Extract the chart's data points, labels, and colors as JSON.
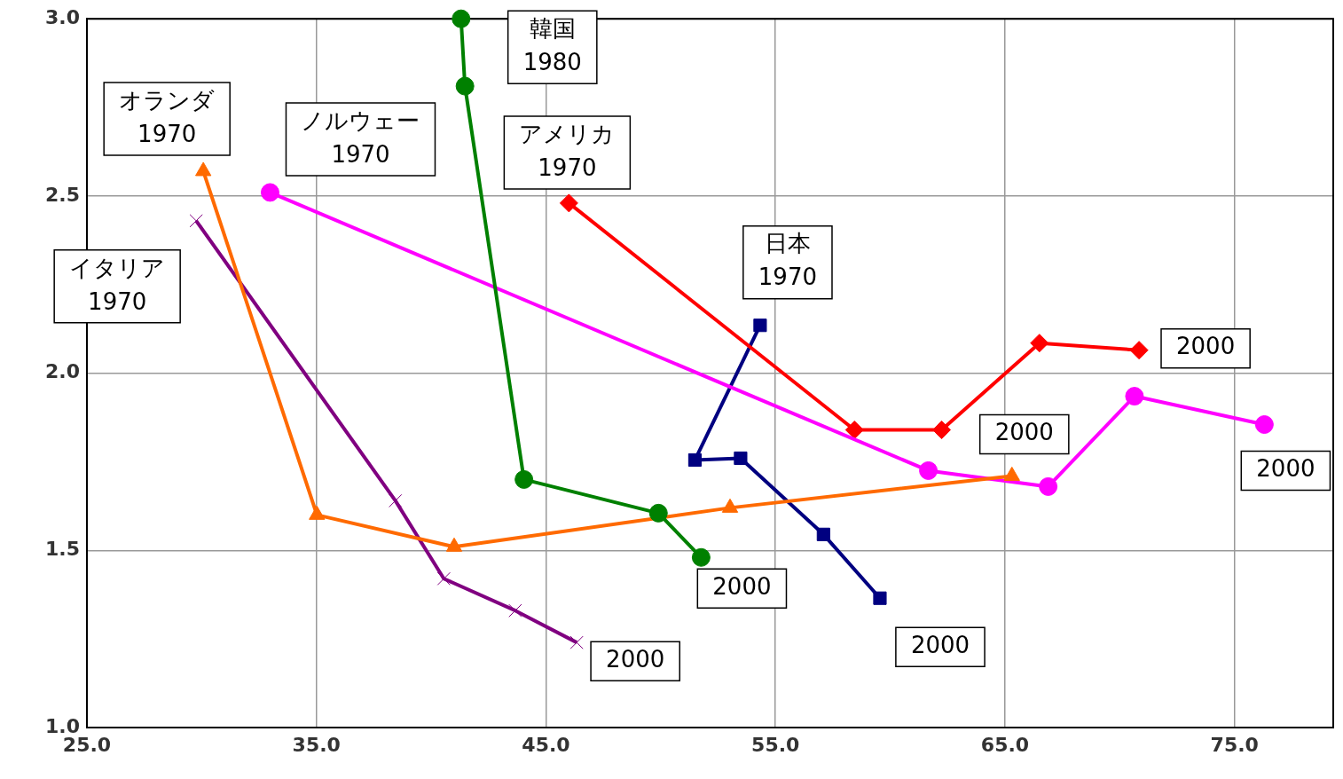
{
  "chart_data": {
    "type": "line",
    "xlim": [
      25,
      79.3
    ],
    "ylim": [
      1,
      3
    ],
    "xticks": [
      {
        "value": 25,
        "label": "25.0"
      },
      {
        "value": 35,
        "label": "35.0"
      },
      {
        "value": 45,
        "label": "45.0"
      },
      {
        "value": 55,
        "label": "55.0"
      },
      {
        "value": 65,
        "label": "65.0"
      },
      {
        "value": 75,
        "label": "75.0"
      }
    ],
    "yticks": [
      {
        "value": 1,
        "label": "1.0"
      },
      {
        "value": 1.5,
        "label": "1.5"
      },
      {
        "value": 2,
        "label": "2.0"
      },
      {
        "value": 2.5,
        "label": "2.5"
      },
      {
        "value": 3,
        "label": "3.0"
      }
    ],
    "grid": true,
    "legend": false,
    "line_style": "solid",
    "series": [
      {
        "color": "#008000",
        "marker": "circle",
        "x": [
          41.3,
          41.47,
          44.04,
          49.9,
          51.76
        ],
        "values": [
          3.0,
          2.81,
          1.7,
          1.605,
          1.48
        ]
      },
      {
        "color": "#ff6a00",
        "marker": "triangle",
        "x": [
          30.07,
          35.02,
          41.0,
          53.02,
          65.3
        ],
        "values": [
          2.57,
          1.6,
          1.51,
          1.62,
          1.71
        ]
      },
      {
        "color": "#ff00ff",
        "marker": "circle",
        "x": [
          32.98,
          61.66,
          66.88,
          70.64,
          76.3
        ],
        "values": [
          2.51,
          1.725,
          1.68,
          1.935,
          1.855
        ]
      },
      {
        "color": "#ff0000",
        "marker": "diamond",
        "x": [
          46.0,
          58.44,
          62.24,
          66.5,
          70.84
        ],
        "values": [
          2.48,
          1.84,
          1.84,
          2.085,
          2.065
        ]
      },
      {
        "color": "#000080",
        "marker": "square",
        "x": [
          54.33,
          51.49,
          53.48,
          57.09,
          59.55
        ],
        "values": [
          2.135,
          1.755,
          1.76,
          1.545,
          1.365
        ]
      },
      {
        "color": "#800080",
        "marker": "cross",
        "x": [
          29.76,
          38.44,
          40.55,
          43.66,
          46.34
        ],
        "values": [
          2.43,
          1.64,
          1.42,
          1.33,
          1.24
        ]
      }
    ],
    "annotations": [
      {
        "text": "韓国\n1980",
        "x": 41.3,
        "y": 3.0
      },
      {
        "text": "オランダ\n1970",
        "x": 30.07,
        "y": 2.57
      },
      {
        "text": "ノルウェー\n1970",
        "x": 32.98,
        "y": 2.51
      },
      {
        "text": "アメリカ\n1970",
        "x": 46.0,
        "y": 2.48
      },
      {
        "text": "日本\n1970",
        "x": 54.33,
        "y": 2.135
      },
      {
        "text": "イタリア\n1970",
        "x": 29.76,
        "y": 2.43
      },
      {
        "text": "2000",
        "x": 70.84,
        "y": 2.065
      },
      {
        "text": "2000",
        "x": 65.3,
        "y": 1.71
      },
      {
        "text": "2000",
        "x": 76.3,
        "y": 1.855
      },
      {
        "text": "2000",
        "x": 51.76,
        "y": 1.48
      },
      {
        "text": "2000",
        "x": 59.55,
        "y": 1.365
      },
      {
        "text": "2000",
        "x": 46.34,
        "y": 1.24
      }
    ]
  }
}
